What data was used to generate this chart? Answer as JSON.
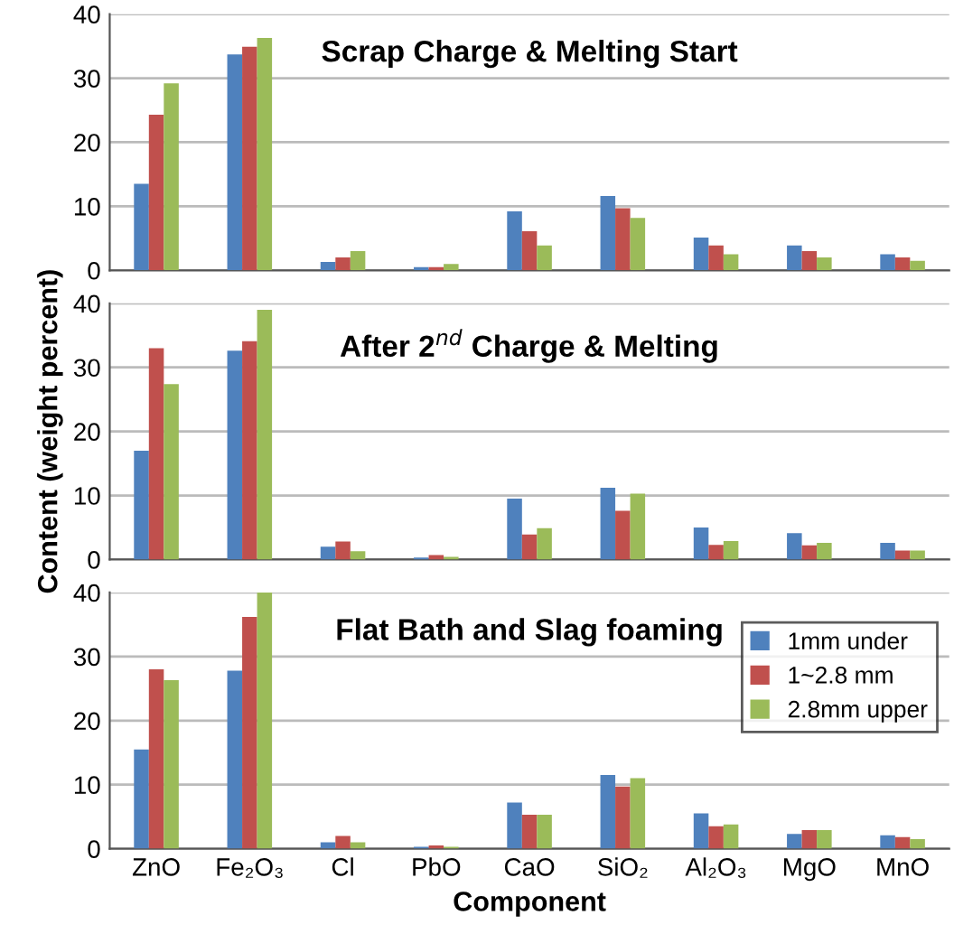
{
  "chart_data": [
    {
      "type": "bar",
      "title": "Scrap Charge & Melting Start",
      "categories": [
        null,
        null,
        null,
        null,
        null,
        null,
        null,
        null,
        null
      ],
      "ylim": [
        0,
        40
      ],
      "yticks": [
        0,
        10,
        20,
        30,
        40
      ],
      "grid": "y",
      "tick_labels": "y",
      "series": [
        {
          "color": "#4f81bd",
          "values": [
            13.5,
            33.7,
            1.3,
            0.5,
            9.2,
            11.6,
            5.1,
            3.9,
            2.5
          ]
        },
        {
          "color": "#c0504d",
          "values": [
            24.3,
            34.9,
            2.0,
            0.5,
            6.1,
            9.7,
            3.9,
            3.0,
            2.0
          ]
        },
        {
          "color": "#9bbb59",
          "values": [
            29.2,
            36.3,
            3.0,
            1.0,
            3.9,
            8.2,
            2.5,
            2.0,
            1.5
          ]
        }
      ]
    },
    {
      "type": "bar",
      "title": "After 2$^{nd}$ Charge & Melting",
      "ylabel": "Content (weight percent)",
      "categories": [
        null,
        null,
        null,
        null,
        null,
        null,
        null,
        null,
        null
      ],
      "ylim": [
        0,
        40
      ],
      "yticks": [
        0,
        10,
        20,
        30,
        40
      ],
      "grid": "y",
      "tick_labels": "y",
      "series": [
        {
          "color": "#4f81bd",
          "values": [
            17.0,
            32.6,
            2.0,
            0.3,
            9.5,
            11.2,
            5.0,
            4.1,
            2.6
          ]
        },
        {
          "color": "#c0504d",
          "values": [
            33.0,
            34.1,
            2.8,
            0.7,
            3.9,
            7.6,
            2.3,
            2.2,
            1.4
          ]
        },
        {
          "color": "#9bbb59",
          "values": [
            27.4,
            39.0,
            1.3,
            0.4,
            4.9,
            10.3,
            2.9,
            2.6,
            1.4
          ]
        }
      ]
    },
    {
      "type": "bar",
      "title": "Flat Bath and Slag foaming",
      "xlabel": "Component",
      "categories": [
        "ZnO",
        "Fe₂O₃",
        "Cl",
        "PbO",
        "CaO",
        "SiO₂",
        "Al₂O₃",
        "MgO",
        "MnO"
      ],
      "ylim": [
        0,
        40
      ],
      "yticks": [
        0,
        10,
        20,
        30,
        40
      ],
      "grid": "y",
      "legend": "top right",
      "series": [
        {
          "name": "1mm under",
          "color": "#4f81bd",
          "values": [
            15.5,
            27.8,
            1.0,
            0.3,
            7.2,
            11.5,
            5.5,
            2.3,
            2.1
          ]
        },
        {
          "name": "1~2.8 mm",
          "color": "#c0504d",
          "values": [
            28.0,
            36.2,
            2.0,
            0.5,
            5.3,
            9.7,
            3.5,
            2.9,
            1.8
          ]
        },
        {
          "name": "2.8mm upper",
          "color": "#9bbb59",
          "values": [
            26.3,
            40.0,
            1.0,
            0.3,
            5.3,
            11.0,
            3.8,
            2.9,
            1.5
          ]
        }
      ]
    }
  ]
}
